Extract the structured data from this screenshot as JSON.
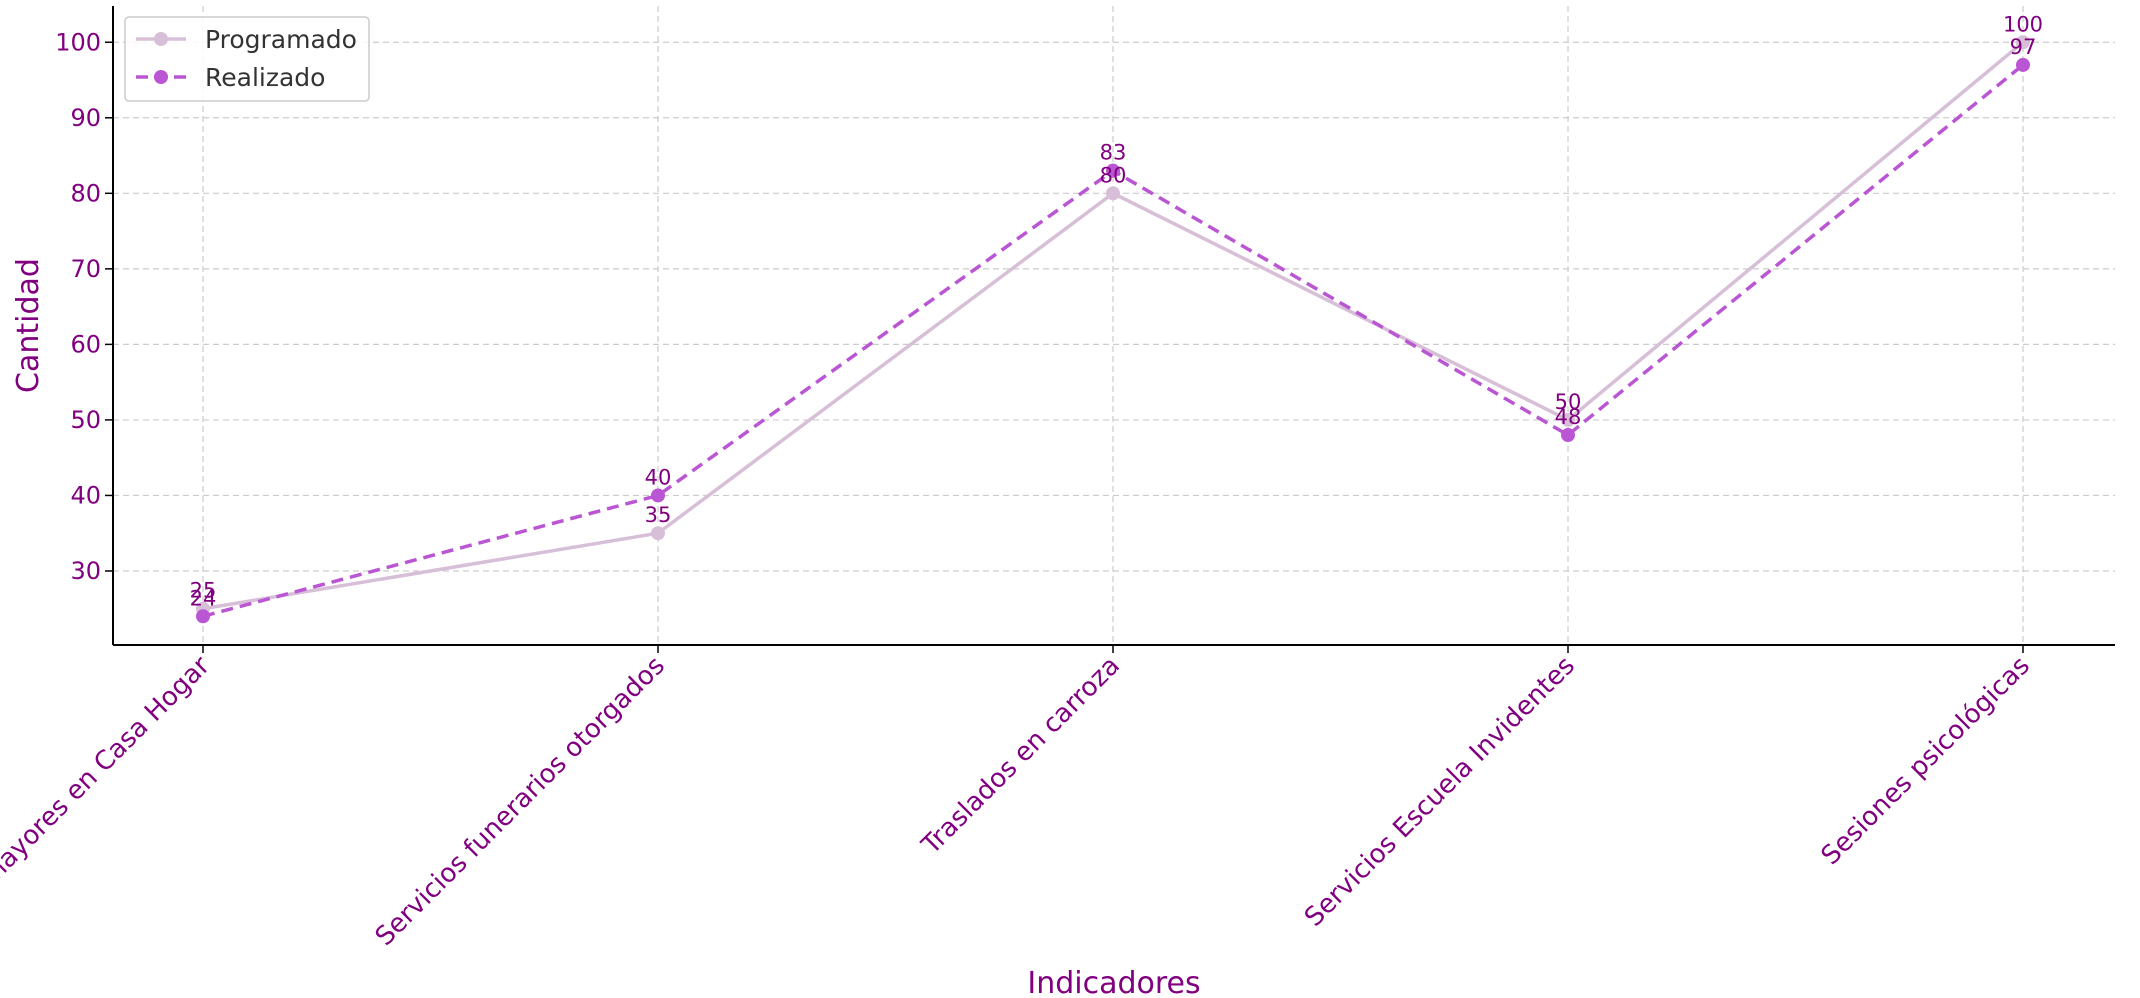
{
  "chart_data": {
    "type": "line",
    "title": "",
    "xlabel": "Indicadores",
    "ylabel": "Cantidad",
    "categories": [
      "Adultos mayores en Casa Hogar",
      "Servicios funerarios otorgados",
      "Traslados en carroza",
      "Servicios Escuela Invidentes",
      "Sesiones psicológicas"
    ],
    "series": [
      {
        "name": "Programado",
        "values": [
          25,
          35,
          80,
          50,
          100
        ],
        "color": "#d8bfd8",
        "dash": "solid"
      },
      {
        "name": "Realizado",
        "values": [
          24,
          40,
          83,
          48,
          97
        ],
        "color": "#ba55d3",
        "dash": "dashed"
      }
    ],
    "ylim": [
      20.2,
      104.8
    ],
    "yticks": [
      30,
      40,
      50,
      60,
      70,
      80,
      90,
      100
    ],
    "grid": true,
    "legend": "top-left",
    "data_labels": true,
    "text_color": "#800080"
  }
}
